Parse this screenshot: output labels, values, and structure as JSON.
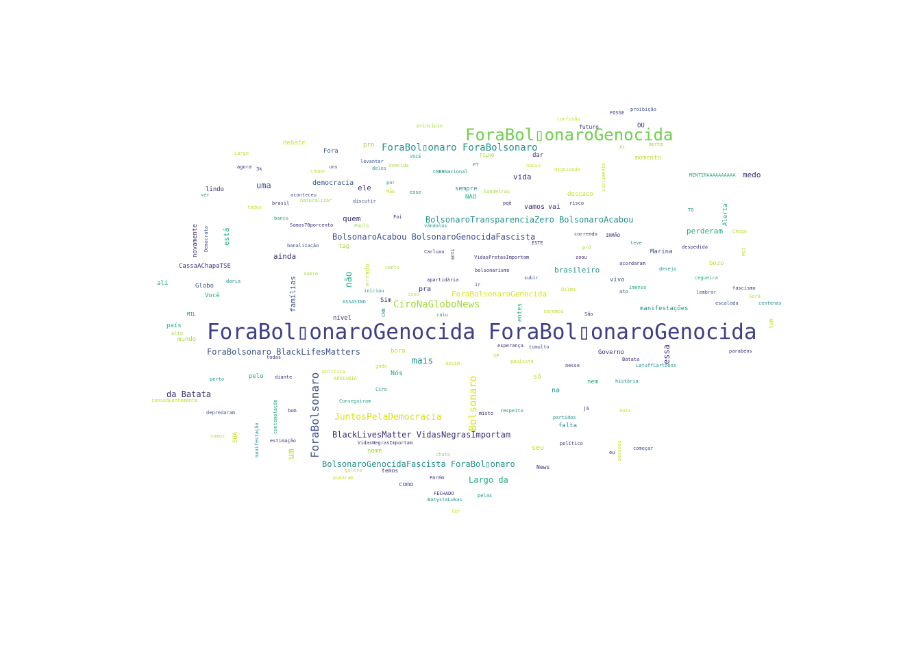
{
  "words": [
    {
      "text": "ForaBol▯onaroGenocida ForaBol▯onaroGenocida",
      "color": "#3f3f87"
    },
    {
      "text": "ForaBol▯onaroGenocida",
      "color": "#6fcf4e"
    },
    {
      "text": "ForaBol▯onaro ForaBolsonaro",
      "color": "#21918c"
    },
    {
      "text": "BolsonaroTransparenciaZero BolsonaroAcabou",
      "color": "#21918c"
    },
    {
      "text": "BolsonaroAcabou BolsonaroGenocidaFascista",
      "color": "#3b528b"
    },
    {
      "text": "CiroNaGloboNews",
      "color": "#a0d93a"
    },
    {
      "text": "ForaBolsonaroGenocida",
      "color": "#d8e219"
    },
    {
      "text": "ForaBolsonaro BlackLifesMatters",
      "color": "#3b528b"
    },
    {
      "text": "JuntosPelaDemocracia",
      "color": "#d8e219"
    },
    {
      "text": "BlackLivesMatter VidasNegrasImportam",
      "color": "#3e2b75"
    },
    {
      "text": "BolsonaroGenocidaFascista ForaBol▯onaro",
      "color": "#21918c"
    },
    {
      "text": "Largo da",
      "color": "#22a884"
    },
    {
      "text": "da Batata",
      "color": "#3e2b75"
    },
    {
      "text": "mais",
      "color": "#21918c"
    },
    {
      "text": "uma",
      "color": "#3b528b"
    },
    {
      "text": "vida",
      "color": "#3e2b75"
    },
    {
      "text": "medo",
      "color": "#3e2b75"
    },
    {
      "text": "ele",
      "color": "#3e2b75"
    },
    {
      "text": "quem",
      "color": "#3e2b75"
    },
    {
      "text": "ainda",
      "color": "#3e2b75"
    },
    {
      "text": "perderam",
      "color": "#22a884"
    },
    {
      "text": "brasileiro",
      "color": "#21918c"
    },
    {
      "text": "vamos",
      "color": "#3e2b75"
    },
    {
      "text": "vai",
      "color": "#3e2b75"
    },
    {
      "text": "democracia",
      "color": "#3b528b"
    },
    {
      "text": "debate",
      "color": "#d8e219"
    },
    {
      "text": "momento",
      "color": "#c2df23"
    },
    {
      "text": "descaso",
      "color": "#c2df23"
    },
    {
      "text": "manifestações",
      "color": "#21918c"
    },
    {
      "text": "Marina",
      "color": "#3b528b"
    },
    {
      "text": "vivo",
      "color": "#3b528b"
    },
    {
      "text": "Governo",
      "color": "#3e2b75"
    },
    {
      "text": "Você",
      "color": "#22a884"
    },
    {
      "text": "Globo",
      "color": "#3b528b"
    },
    {
      "text": "pra",
      "color": "#3e2b75"
    },
    {
      "text": "Nós",
      "color": "#22a884"
    },
    {
      "text": "só",
      "color": "#c2df23"
    },
    {
      "text": "na",
      "color": "#21918c"
    },
    {
      "text": "seu",
      "color": "#c2df23"
    },
    {
      "text": "falta",
      "color": "#21918c"
    },
    {
      "text": "nome",
      "color": "#a0d93a"
    },
    {
      "text": "pelo",
      "color": "#22a884"
    },
    {
      "text": "mundo",
      "color": "#a0d93a"
    },
    {
      "text": "país",
      "color": "#22a884"
    },
    {
      "text": "nível",
      "color": "#3e2b75"
    },
    {
      "text": "ali",
      "color": "#22a884"
    },
    {
      "text": "lindo",
      "color": "#3e2b75"
    },
    {
      "text": "CassaAChapaTSE",
      "color": "#3e2b75"
    },
    {
      "text": "Fora",
      "color": "#3b528b"
    },
    {
      "text": "pro",
      "color": "#a0d93a"
    },
    {
      "text": "dar",
      "color": "#3e2b75"
    },
    {
      "text": "sempre",
      "color": "#21918c"
    },
    {
      "text": "NAO",
      "color": "#22a884"
    },
    {
      "text": "bozo",
      "color": "#c2df23"
    },
    {
      "text": "Sim",
      "color": "#3e2b75"
    },
    {
      "text": "como",
      "color": "#3b528b"
    },
    {
      "text": "temos",
      "color": "#3e2b75"
    },
    {
      "text": "News",
      "color": "#3e2b75"
    },
    {
      "text": "nem",
      "color": "#22a884"
    },
    {
      "text": "bora",
      "color": "#c2df23"
    },
    {
      "text": "tag",
      "color": "#a0d93a"
    },
    {
      "text": "OU",
      "color": "#3e2b75"
    },
    {
      "text": "futuro",
      "color": "#3e2b75"
    },
    {
      "text": "confusão",
      "color": "#c2df23"
    },
    {
      "text": "FOSSE",
      "color": "#3e2b75"
    },
    {
      "text": "proibição",
      "color": "#3b528b"
    },
    {
      "text": "princípio",
      "color": "#a0d93a"
    },
    {
      "text": "Largo",
      "color": "#c2df23"
    },
    {
      "text": "agora",
      "color": "#3e2b75"
    },
    {
      "text": "3k",
      "color": "#3e2b75"
    },
    {
      "text": "levantar",
      "color": "#3b528b"
    },
    {
      "text": "uns",
      "color": "#3b528b"
    },
    {
      "text": "chapa",
      "color": "#c2df23"
    },
    {
      "text": "deles",
      "color": "#22a884"
    },
    {
      "text": "avenida",
      "color": "#a0d93a"
    },
    {
      "text": "VOCÊ",
      "color": "#22a884"
    },
    {
      "text": "FILHO",
      "color": "#a0d93a"
    },
    {
      "text": "PT",
      "color": "#22a884"
    },
    {
      "text": "nosso",
      "color": "#c2df23"
    },
    {
      "text": "dignidade",
      "color": "#c2df23"
    },
    {
      "text": "CNBBNacional",
      "color": "#21918c"
    },
    {
      "text": "Xi",
      "color": "#a0d93a"
    },
    {
      "text": "morte",
      "color": "#a0d93a"
    },
    {
      "text": "MENTIRAAAAAAAAAA",
      "color": "#22a884"
    },
    {
      "text": "ver",
      "color": "#22a884"
    },
    {
      "text": "aconteceu",
      "color": "#3b528b"
    },
    {
      "text": "brasil",
      "color": "#3e2b75"
    },
    {
      "text": "naturalizar",
      "color": "#a0d93a"
    },
    {
      "text": "discutir",
      "color": "#3b528b"
    },
    {
      "text": "por",
      "color": "#21918c"
    },
    {
      "text": "MÃE",
      "color": "#c2df23"
    },
    {
      "text": "esse",
      "color": "#21918c"
    },
    {
      "text": "bandeiras",
      "color": "#a0d93a"
    },
    {
      "text": "pqê",
      "color": "#3e2b75"
    },
    {
      "text": "risco",
      "color": "#3e2b75"
    },
    {
      "text": "TO",
      "color": "#21918c"
    },
    {
      "text": "todos",
      "color": "#c2df23"
    },
    {
      "text": "banco",
      "color": "#22a884"
    },
    {
      "text": "Somos70porcento",
      "color": "#3e2b75"
    },
    {
      "text": "Paulo",
      "color": "#a0d93a"
    },
    {
      "text": "Foi",
      "color": "#3e2b75"
    },
    {
      "text": "vândalos",
      "color": "#21918c"
    },
    {
      "text": "Chego",
      "color": "#c2df23"
    },
    {
      "text": "correndo",
      "color": "#3e2b75"
    },
    {
      "text": "IRMÃO",
      "color": "#3e2b75"
    },
    {
      "text": "banalização",
      "color": "#3b528b"
    },
    {
      "text": "ESTE",
      "color": "#3e2b75"
    },
    {
      "text": "pró",
      "color": "#a0d93a"
    },
    {
      "text": "teve",
      "color": "#21918c"
    },
    {
      "text": "despedida",
      "color": "#3e2b75"
    },
    {
      "text": "Carluxo",
      "color": "#3e2b75"
    },
    {
      "text": "VidasPretasImportam",
      "color": "#3e2b75"
    },
    {
      "text": "zoou",
      "color": "#3e2b75"
    },
    {
      "text": "acordaram",
      "color": "#3e2b75"
    },
    {
      "text": "desejo",
      "color": "#21918c"
    },
    {
      "text": "sobre",
      "color": "#a0d93a"
    },
    {
      "text": "cento",
      "color": "#a0d93a"
    },
    {
      "text": "bolsonarismo",
      "color": "#3e2b75"
    },
    {
      "text": "subir",
      "color": "#3b528b"
    },
    {
      "text": "cegueira",
      "color": "#22a884"
    },
    {
      "text": "daria",
      "color": "#21918c"
    },
    {
      "text": "apartidária",
      "color": "#3e2b75"
    },
    {
      "text": "ir",
      "color": "#3b528b"
    },
    {
      "text": "Dilma",
      "color": "#c2df23"
    },
    {
      "text": "imenso",
      "color": "#22a884"
    },
    {
      "text": "fascismo",
      "color": "#3e2b75"
    },
    {
      "text": "iniciou",
      "color": "#21918c"
    },
    {
      "text": "isso",
      "color": "#c2df23"
    },
    {
      "text": "ato",
      "color": "#3b528b"
    },
    {
      "text": "lembrar",
      "color": "#3b528b"
    },
    {
      "text": "Será",
      "color": "#c2df23"
    },
    {
      "text": "ASSASINO",
      "color": "#21918c"
    },
    {
      "text": "escalada",
      "color": "#3b528b"
    },
    {
      "text": "centenas",
      "color": "#21918c"
    },
    {
      "text": "MIL",
      "color": "#21918c"
    },
    {
      "text": "caiu",
      "color": "#21918c"
    },
    {
      "text": "seremos",
      "color": "#c2df23"
    },
    {
      "text": "São",
      "color": "#3e2b75"
    },
    {
      "text": "alto",
      "color": "#a0d93a"
    },
    {
      "text": "esperança",
      "color": "#3e2b75"
    },
    {
      "text": "tumulto",
      "color": "#3b528b"
    },
    {
      "text": "Batata",
      "color": "#3e2b75"
    },
    {
      "text": "todas",
      "color": "#3e2b75"
    },
    {
      "text": "SP",
      "color": "#a0d93a"
    },
    {
      "text": "paulista",
      "color": "#c2df23"
    },
    {
      "text": "política",
      "color": "#c2df23"
    },
    {
      "text": "gado",
      "color": "#c2df23"
    },
    {
      "text": "assim",
      "color": "#c2df23"
    },
    {
      "text": "nesse",
      "color": "#3e2b75"
    },
    {
      "text": "LatuffCartoons",
      "color": "#21918c"
    },
    {
      "text": "parabéns",
      "color": "#3e2b75"
    },
    {
      "text": "perto",
      "color": "#21918c"
    },
    {
      "text": "diante",
      "color": "#3e2b75"
    },
    {
      "text": "APOIARIA",
      "color": "#c2df23"
    },
    {
      "text": "história",
      "color": "#21918c"
    },
    {
      "text": "consequentemente",
      "color": "#c2df23"
    },
    {
      "text": "Ciro",
      "color": "#21918c"
    },
    {
      "text": "Conseguiram",
      "color": "#22a884"
    },
    {
      "text": "depredaram",
      "color": "#3b528b"
    },
    {
      "text": "bom",
      "color": "#3e2b75"
    },
    {
      "text": "já",
      "color": "#3e2b75"
    },
    {
      "text": "misto",
      "color": "#3e2b75"
    },
    {
      "text": "respeito",
      "color": "#21918c"
    },
    {
      "text": "partidos",
      "color": "#21918c"
    },
    {
      "text": "bots",
      "color": "#c2df23"
    },
    {
      "text": "somos",
      "color": "#c2df23"
    },
    {
      "text": "estimação",
      "color": "#3e2b75"
    },
    {
      "text": "VidasNegrasImportam",
      "color": "#3e2b75"
    },
    {
      "text": "político",
      "color": "#3e2b75"
    },
    {
      "text": "eu",
      "color": "#3e2b75"
    },
    {
      "text": "começar",
      "color": "#3b528b"
    },
    {
      "text": "chuto",
      "color": "#a0d93a"
    },
    {
      "text": "galera",
      "color": "#c2df23"
    },
    {
      "text": "puderam",
      "color": "#c2df23"
    },
    {
      "text": "Porém",
      "color": "#3e2b75"
    },
    {
      "text": "FECHADO",
      "color": "#3e2b75"
    },
    {
      "text": "BatystaLukas",
      "color": "#21918c"
    },
    {
      "text": "pelas",
      "color": "#21918c"
    },
    {
      "text": "ter",
      "color": "#c2df23"
    },
    {
      "text": "ForaBolsonaro",
      "color": "#3b528b"
    },
    {
      "text": "Bolsonaro",
      "color": "#d8e219"
    },
    {
      "text": "não",
      "color": "#22a884"
    },
    {
      "text": "famílias",
      "color": "#3b528b"
    },
    {
      "text": "essa",
      "color": "#3e2b75"
    },
    {
      "text": "um",
      "color": "#c2df23"
    },
    {
      "text": "está",
      "color": "#22a884"
    },
    {
      "text": "novamente",
      "color": "#3e2b75"
    },
    {
      "text": "Democrata",
      "color": "#3b528b"
    },
    {
      "text": "errado",
      "color": "#c2df23"
    },
    {
      "text": "entes",
      "color": "#22a884"
    },
    {
      "text": "Alerta",
      "color": "#22a884"
    },
    {
      "text": "isolamento",
      "color": "#c2df23"
    },
    {
      "text": "anti",
      "color": "#3e2b75"
    },
    {
      "text": "CNN",
      "color": "#21918c"
    },
    {
      "text": "PAI",
      "color": "#c2df23"
    },
    {
      "text": "tem",
      "color": "#c2df23"
    },
    {
      "text": "SUA",
      "color": "#c2df23"
    },
    {
      "text": "manifestação",
      "color": "#21918c"
    },
    {
      "text": "contemplação",
      "color": "#22a884"
    },
    {
      "text": "pessoas",
      "color": "#c2df23"
    }
  ]
}
